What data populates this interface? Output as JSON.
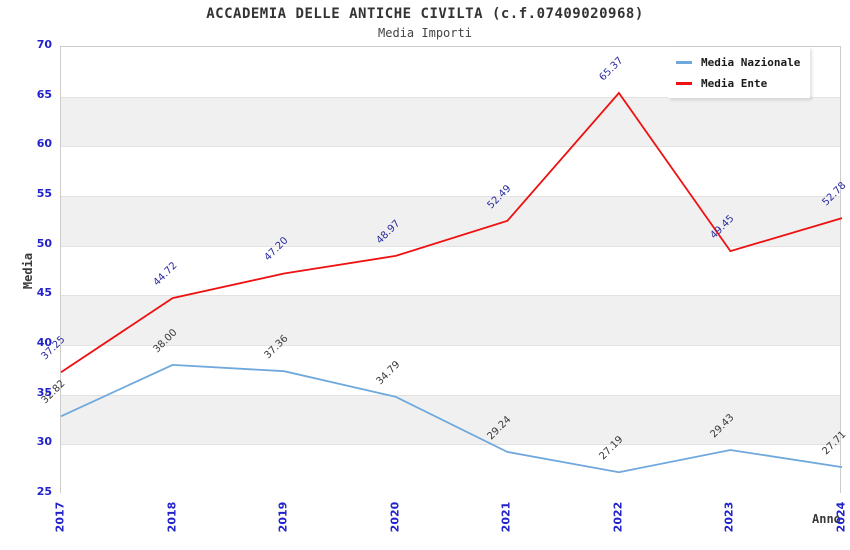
{
  "chart_data": {
    "type": "line",
    "title": "ACCADEMIA DELLE ANTICHE CIVILTA (c.f.07409020968)",
    "subtitle": "Media Importi",
    "xlabel": "Anno",
    "ylabel": "Media",
    "categories": [
      "2017",
      "2018",
      "2019",
      "2020",
      "2021",
      "2022",
      "2023",
      "2024"
    ],
    "series": [
      {
        "name": "Media Nazionale",
        "color": "#6fa8dc",
        "label_color": "#3a3a3a",
        "values": [
          32.82,
          38.0,
          37.36,
          34.79,
          29.24,
          27.19,
          29.43,
          27.71
        ]
      },
      {
        "name": "Media Ente",
        "color": "#ee1111",
        "label_color": "#2a2aa0",
        "values": [
          37.25,
          44.72,
          47.2,
          48.97,
          52.49,
          65.37,
          49.45,
          52.78
        ]
      }
    ],
    "ylim": [
      25,
      70
    ],
    "ytick_step": 5,
    "grid": "horizontal-bands",
    "band_color": "#f0f0f0",
    "gridline_color": "#e2e2e2",
    "axis_tick_color": "#2222cc",
    "legend_position": "top-right",
    "value_label_decimals": 2
  }
}
